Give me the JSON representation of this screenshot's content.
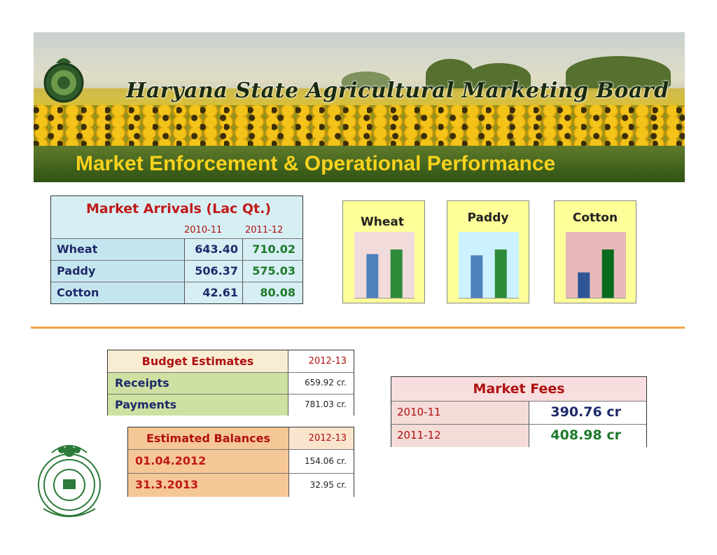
{
  "banner": {
    "org_name": "Haryana State Agricultural Marketing Board"
  },
  "page_title": "Market Enforcement & Operational Performance",
  "arrivals": {
    "title": "Market Arrivals (Lac Qt.)",
    "years": [
      "2010-11",
      "2011-12"
    ],
    "rows": [
      {
        "name": "Wheat",
        "y1": "643.40",
        "y2": "710.02"
      },
      {
        "name": "Paddy",
        "y1": "506.37",
        "y2": "575.03"
      },
      {
        "name": "Cotton",
        "y1": "42.61",
        "y2": "80.08"
      }
    ]
  },
  "mini_charts": [
    {
      "label": "Wheat",
      "values": [
        643.4,
        710.02
      ],
      "colors": [
        "#4f81bd",
        "#2e8b3a"
      ],
      "bg": "#f2dcdb",
      "frame": "#ffff99"
    },
    {
      "label": "Paddy",
      "values": [
        506.37,
        575.03
      ],
      "colors": [
        "#4f81bd",
        "#2e8b3a"
      ],
      "bg": "#ccf2ff",
      "frame": "#ffff99"
    },
    {
      "label": "Cotton",
      "values": [
        42.61,
        80.08
      ],
      "colors": [
        "#2f5597",
        "#0a6b1e"
      ],
      "bg": "#e6b9b8",
      "frame": "#ffff99"
    }
  ],
  "budget": {
    "header_label": "Budget Estimates",
    "header_year": "2012-13",
    "rows": [
      {
        "label": "Receipts",
        "value": "659.92 cr."
      },
      {
        "label": "Payments",
        "value": "781.03 cr."
      }
    ]
  },
  "balances": {
    "header_label": "Estimated Balances",
    "header_year": "2012-13",
    "rows": [
      {
        "label": "01.04.2012",
        "value": "154.06 cr."
      },
      {
        "label": "31.3.2013",
        "value": "32.95 cr."
      }
    ]
  },
  "market_fees": {
    "title": "Market Fees",
    "rows": [
      {
        "year": "2010-11",
        "value": "390.76 cr"
      },
      {
        "year": "2011-12",
        "value": "408.98 cr"
      }
    ]
  }
}
